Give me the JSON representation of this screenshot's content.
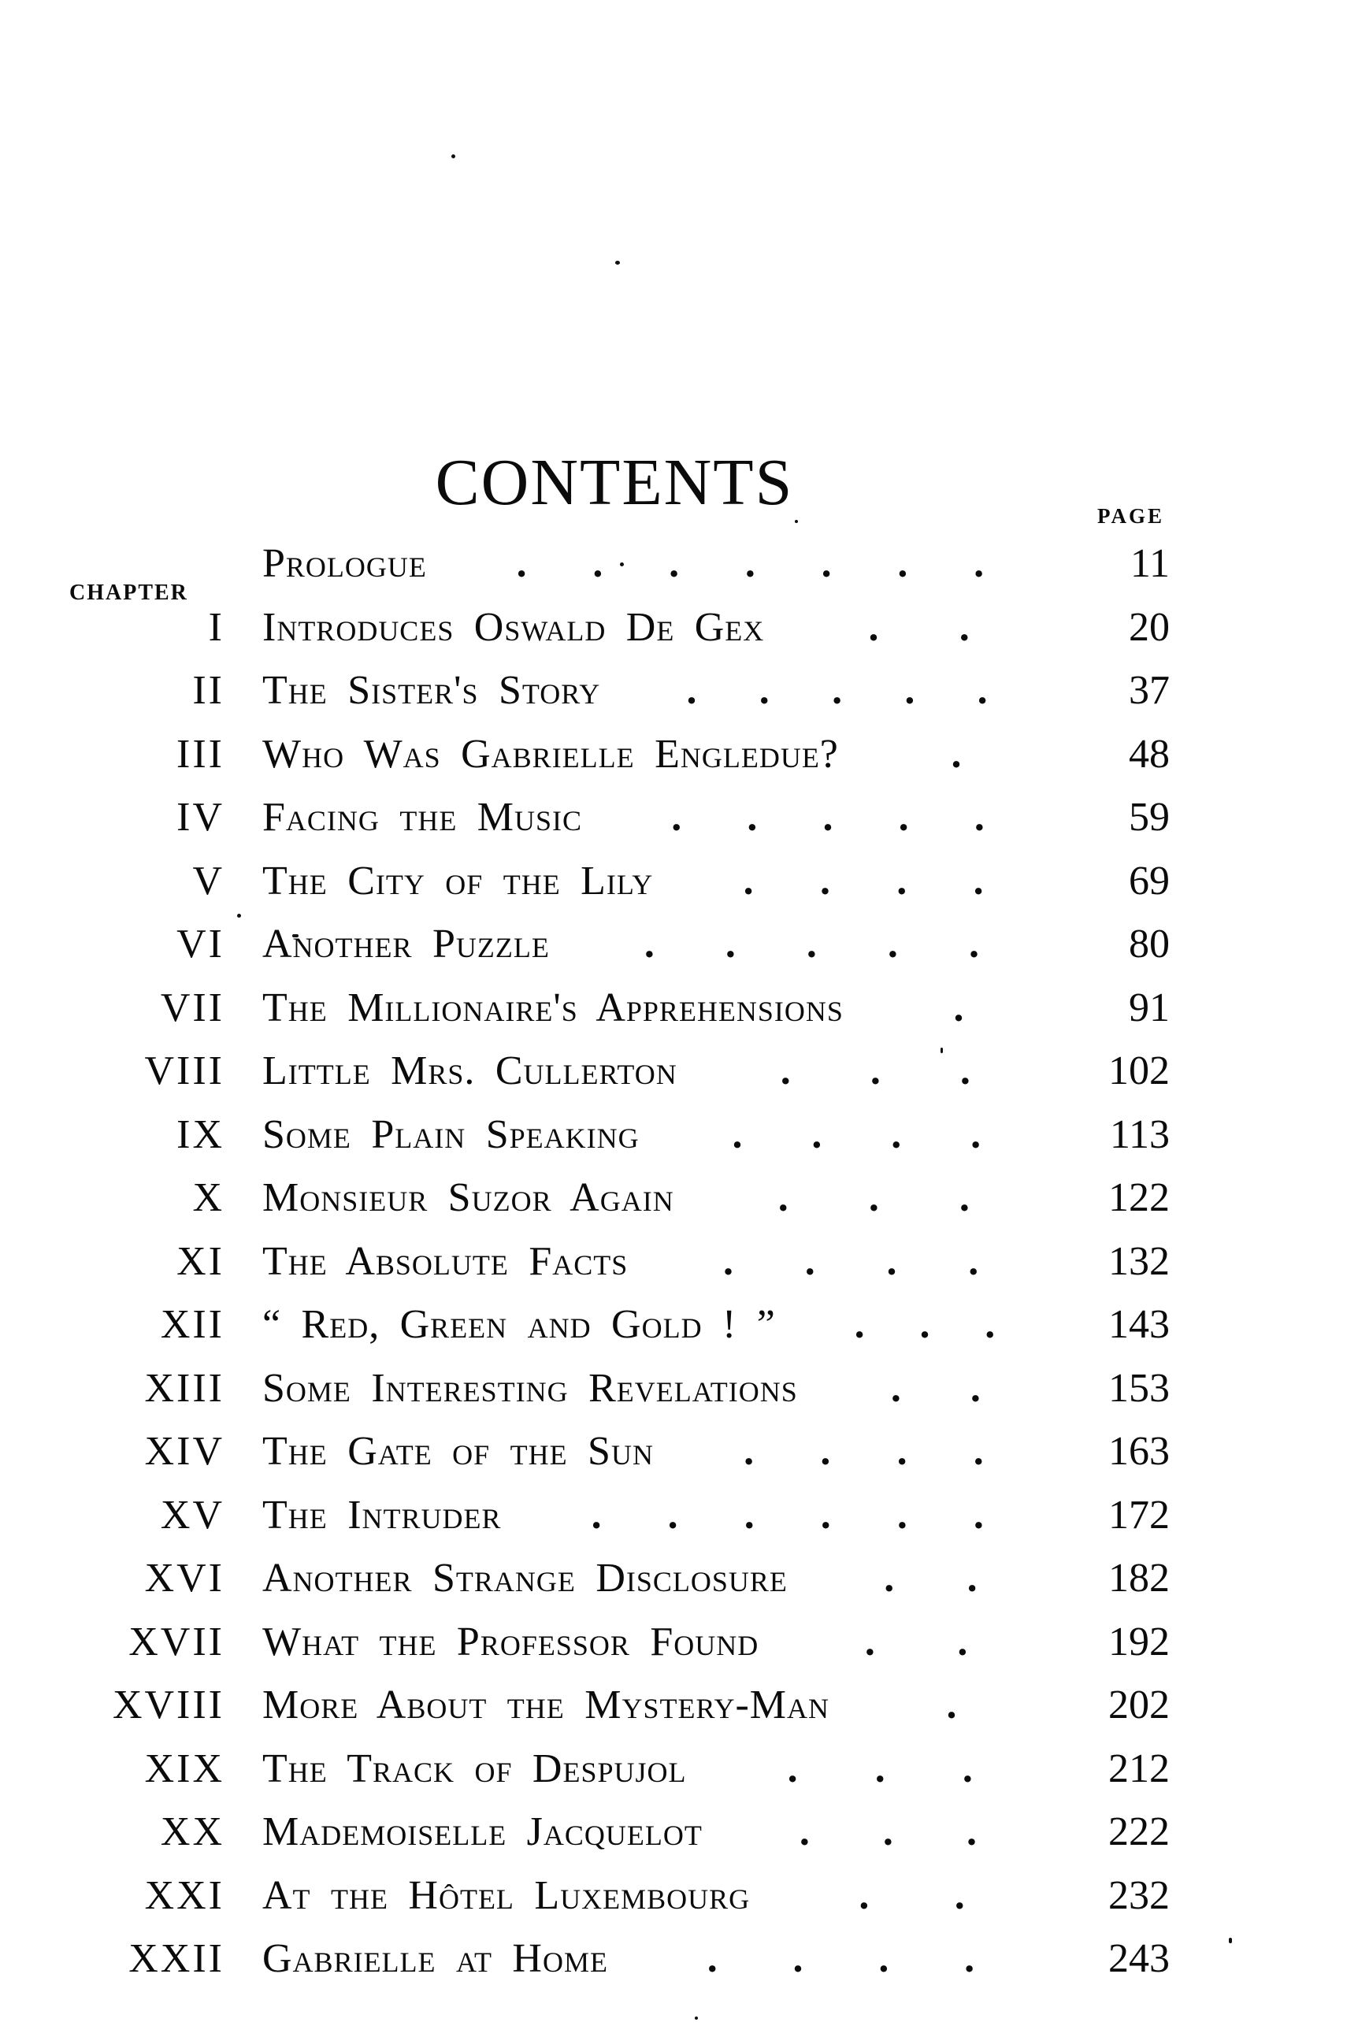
{
  "page": {
    "title": "CONTENTS",
    "chapter_column_label": "CHAPTER",
    "page_column_label": "PAGE",
    "ink_color": "#0b0b0b",
    "paper_color": "#ffffff"
  },
  "toc": {
    "rows": [
      {
        "numeral": "",
        "title": "Prologue",
        "dots": 7,
        "page": "11"
      },
      {
        "numeral": "I",
        "title": "Introduces Oswald De Gex",
        "dots": 2,
        "page": "20"
      },
      {
        "numeral": "II",
        "title": "The Sister's Story",
        "dots": 5,
        "page": "37"
      },
      {
        "numeral": "III",
        "title": "Who Was Gabrielle Engledue?",
        "dots": 1,
        "page": "48"
      },
      {
        "numeral": "IV",
        "title": "Facing the Music",
        "dots": 5,
        "page": "59"
      },
      {
        "numeral": "V",
        "title": "The City of the Lily",
        "dots": 4,
        "page": "69"
      },
      {
        "numeral": "VI",
        "title": "Another Puzzle",
        "dots": 5,
        "page": "80"
      },
      {
        "numeral": "VII",
        "title": "The Millionaire's Apprehensions",
        "dots": 1,
        "page": "91"
      },
      {
        "numeral": "VIII",
        "title": "Little Mrs. Cullerton",
        "dots": 3,
        "page": "102"
      },
      {
        "numeral": "IX",
        "title": "Some Plain Speaking",
        "dots": 4,
        "page": "113"
      },
      {
        "numeral": "X",
        "title": "Monsieur Suzor Again",
        "dots": 3,
        "page": "122"
      },
      {
        "numeral": "XI",
        "title": "The Absolute Facts",
        "dots": 4,
        "page": "132"
      },
      {
        "numeral": "XII",
        "title": "“ Red, Green and Gold ! ”",
        "dots": 3,
        "page": "143"
      },
      {
        "numeral": "XIII",
        "title": "Some Interesting Revelations",
        "dots": 2,
        "page": "153"
      },
      {
        "numeral": "XIV",
        "title": "The Gate of the Sun",
        "dots": 4,
        "page": "163"
      },
      {
        "numeral": "XV",
        "title": "The Intruder",
        "dots": 6,
        "page": "172"
      },
      {
        "numeral": "XVI",
        "title": "Another Strange Disclosure",
        "dots": 2,
        "page": "182"
      },
      {
        "numeral": "XVII",
        "title": "What the Professor Found",
        "dots": 2,
        "page": "192"
      },
      {
        "numeral": "XVIII",
        "title": "More About the Mystery-Man",
        "dots": 1,
        "page": "202"
      },
      {
        "numeral": "XIX",
        "title": "The Track of Despujol",
        "dots": 3,
        "page": "212"
      },
      {
        "numeral": "XX",
        "title": "Mademoiselle Jacquelot",
        "dots": 3,
        "page": "222"
      },
      {
        "numeral": "XXI",
        "title": "At the Hôtel Luxembourg",
        "dots": 2,
        "page": "232"
      },
      {
        "numeral": "XXII",
        "title": "Gabrielle at Home",
        "dots": 4,
        "page": "243"
      }
    ]
  }
}
